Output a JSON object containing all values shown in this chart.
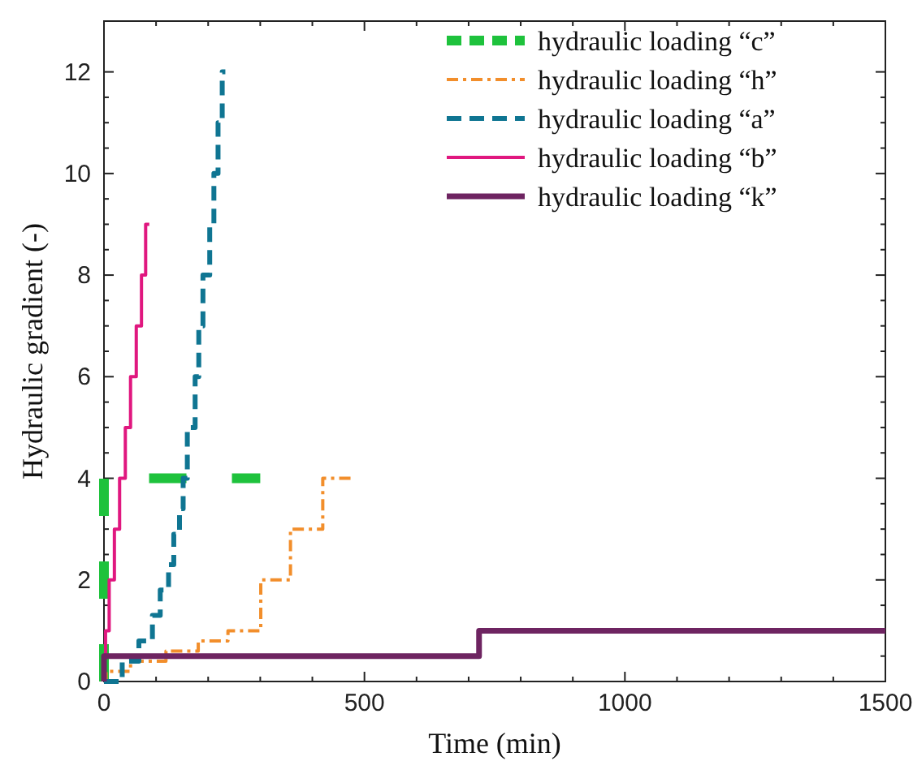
{
  "chart_data": {
    "type": "step",
    "xlabel": "Time (min)",
    "ylabel": "Hydraulic gradient (-)",
    "xlim": [
      0,
      1500
    ],
    "xticks": [
      0,
      500,
      1000,
      1500
    ],
    "ylim": [
      0,
      13
    ],
    "yticks": [
      0,
      2,
      4,
      6,
      8,
      10,
      12
    ],
    "grid": false,
    "legend": "top right",
    "series": [
      {
        "name": "hydraulic loading “c”",
        "type": "line",
        "color": "#1ec23c",
        "line_style": "dashed",
        "x": [
          0,
          0,
          300
        ],
        "values": [
          0,
          4,
          4
        ]
      },
      {
        "name": "hydraulic loading “h”",
        "color": "#f28e2b",
        "line_style": "dashdot",
        "x": [
          0,
          4,
          51,
          119,
          181,
          238,
          301,
          358,
          420,
          479
        ],
        "values": [
          0,
          0.2,
          0.4,
          0.6,
          0.8,
          1,
          2,
          3,
          4,
          4
        ]
      },
      {
        "name": "hydraulic loading “a”",
        "color": "#0f7592",
        "line_style": "dashed",
        "x": [
          0,
          35,
          67,
          93,
          108,
          124,
          134,
          145,
          152,
          160,
          175,
          182,
          190,
          203,
          211,
          219,
          227,
          233
        ],
        "values": [
          0,
          0.4,
          0.8,
          1.3,
          1.8,
          2.3,
          2.9,
          3.4,
          4,
          5,
          6,
          7,
          8,
          9,
          10,
          11,
          12,
          12
        ]
      },
      {
        "name": "hydraulic loading “b”",
        "color": "#e0177f",
        "line_style": "solid",
        "x": [
          0,
          3,
          10,
          20,
          30,
          41,
          51,
          62,
          72,
          80,
          87
        ],
        "values": [
          0.5,
          1,
          2,
          3,
          4,
          5,
          6,
          7,
          8,
          9,
          9
        ]
      },
      {
        "name": "hydraulic loading “k”",
        "color": "#6e2461",
        "line_style": "solid",
        "x": [
          0,
          0,
          720,
          1500
        ],
        "values": [
          0,
          0.5,
          1,
          1
        ]
      }
    ]
  }
}
